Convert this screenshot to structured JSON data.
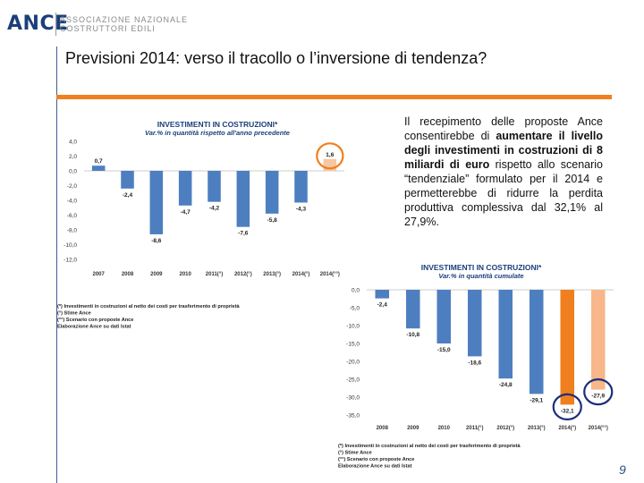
{
  "header": {
    "logo_text": "ANCE",
    "org_line1": "ASSOCIAZIONE NAZIONALE",
    "org_line2": "COSTRUTTORI EDILI"
  },
  "slide": {
    "title": "Previsioni 2014: verso il tracollo o l’inversione di tendenza?",
    "page_number": "9",
    "accent_color": "#f07f1f",
    "description": {
      "part1": "Il recepimento delle proposte Ance consentirebbe di ",
      "bold1": "aumentare il livello degli investimenti in costruzioni di 8 miliardi di euro",
      "part2": " rispetto allo scenario “tendenziale” formulato per il 2014 e permetterebbe di ridurre la perdita produttiva complessiva dal 32,1% al 27,9%."
    }
  },
  "chart_data": [
    {
      "type": "bar",
      "title": "INVESTIMENTI IN COSTRUZIONI*",
      "subtitle": "Var.% in quantità rispetto all'anno precedente",
      "categories": [
        "2007",
        "2008",
        "2009",
        "2010",
        "2011(°)",
        "2012(°)",
        "2013(°)",
        "2014(°)",
        "2014(°°)"
      ],
      "values": [
        0.7,
        -2.4,
        -8.6,
        -4.7,
        -4.2,
        -7.6,
        -5.8,
        -4.3,
        1.6
      ],
      "value_labels": [
        "0,7",
        "-2,4",
        "-8,6",
        "-4,7",
        "-4,2",
        "-7,6",
        "-5,8",
        "-4,3",
        "1,6"
      ],
      "yticks": [
        "4,0",
        "2,0",
        "0,0",
        "-2,0",
        "-4,0",
        "-6,0",
        "-8,0",
        "-10,0",
        "-12,0"
      ],
      "ylim": [
        -12,
        4
      ],
      "colors": [
        "#4d7fc0",
        "#4d7fc0",
        "#4d7fc0",
        "#4d7fc0",
        "#4d7fc0",
        "#4d7fc0",
        "#4d7fc0",
        "#4d7fc0",
        "#f7c7a0"
      ],
      "highlight_circle": "2014(°°)",
      "notes": [
        "(*) Investimenti in costruzioni al netto dei costi per trasferimento di proprietà",
        "(°) Stime Ance",
        "(°°) Scenario con proposte Ance",
        "Elaborazione Ance su dati Istat"
      ]
    },
    {
      "type": "bar",
      "title": "INVESTIMENTI IN COSTRUZIONI*",
      "subtitle": "Var.% in quantità cumulate",
      "categories": [
        "2008",
        "2009",
        "2010",
        "2011(°)",
        "2012(°)",
        "2013(°)",
        "2014(°)",
        "2014(°°)"
      ],
      "values": [
        -2.4,
        -10.8,
        -15.0,
        -18.6,
        -24.8,
        -29.1,
        -32.1,
        -27.9
      ],
      "value_labels": [
        "-2,4",
        "-10,8",
        "-15,0",
        "-18,6",
        "-24,8",
        "-29,1",
        "-32,1",
        "-27,9"
      ],
      "yticks": [
        "0,0",
        "-5,0",
        "-10,0",
        "-15,0",
        "-20,0",
        "-25,0",
        "-30,0",
        "-35,0"
      ],
      "ylim": [
        -35,
        0
      ],
      "colors": [
        "#4d7fc0",
        "#4d7fc0",
        "#4d7fc0",
        "#4d7fc0",
        "#4d7fc0",
        "#4d7fc0",
        "#f07f1f",
        "#f7b78a"
      ],
      "highlight_circles": [
        "2014(°)",
        "2014(°°)"
      ],
      "notes": [
        "(*) Investimenti in costruzioni al netto dei costi per trasferimento di proprietà",
        "(°) Stime Ance",
        "(°°) Scenario con proposte Ance",
        "Elaborazione Ance su dati Istat"
      ]
    }
  ]
}
